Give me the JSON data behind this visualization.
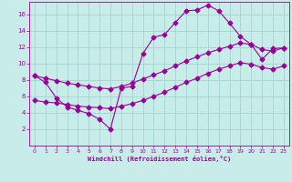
{
  "xlabel": "Windchill (Refroidissement éolien,°C)",
  "bg_color": "#c8ece8",
  "grid_color": "#a8d8d4",
  "line_color": "#990099",
  "xlim": [
    -0.5,
    23.5
  ],
  "ylim": [
    0,
    17.5
  ],
  "xticks": [
    0,
    1,
    2,
    3,
    4,
    5,
    6,
    7,
    8,
    9,
    10,
    11,
    12,
    13,
    14,
    15,
    16,
    17,
    18,
    19,
    20,
    21,
    22,
    23
  ],
  "yticks": [
    2,
    4,
    6,
    8,
    10,
    12,
    14,
    16
  ],
  "line1_x": [
    0,
    1,
    2,
    3,
    4,
    5,
    6,
    7,
    8,
    9,
    10,
    11,
    12,
    13,
    14,
    15,
    16,
    17,
    18,
    19,
    20,
    21,
    22,
    23
  ],
  "line1_y": [
    8.5,
    7.7,
    5.8,
    4.7,
    4.3,
    3.9,
    3.2,
    2.0,
    7.0,
    7.2,
    11.2,
    13.2,
    13.5,
    15.0,
    16.4,
    16.5,
    17.1,
    16.4,
    14.9,
    13.3,
    12.3,
    10.5,
    11.8,
    11.9
  ],
  "line2_x": [
    0,
    1,
    2,
    3,
    4,
    5,
    6,
    7,
    8,
    9,
    10,
    11,
    12,
    13,
    14,
    15,
    16,
    17,
    18,
    19,
    20,
    21,
    22,
    23
  ],
  "line2_y": [
    8.5,
    8.2,
    7.9,
    7.6,
    7.4,
    7.2,
    7.0,
    6.9,
    7.2,
    7.6,
    8.1,
    8.6,
    9.1,
    9.7,
    10.3,
    10.8,
    11.3,
    11.7,
    12.1,
    12.5,
    12.3,
    11.7,
    11.5,
    11.9
  ],
  "line3_x": [
    0,
    1,
    2,
    3,
    4,
    5,
    6,
    7,
    8,
    9,
    10,
    11,
    12,
    13,
    14,
    15,
    16,
    17,
    18,
    19,
    20,
    21,
    22,
    23
  ],
  "line3_y": [
    5.5,
    5.3,
    5.2,
    5.0,
    4.8,
    4.7,
    4.6,
    4.5,
    4.8,
    5.1,
    5.5,
    6.0,
    6.5,
    7.1,
    7.7,
    8.2,
    8.8,
    9.3,
    9.7,
    10.1,
    9.9,
    9.5,
    9.3,
    9.7
  ]
}
